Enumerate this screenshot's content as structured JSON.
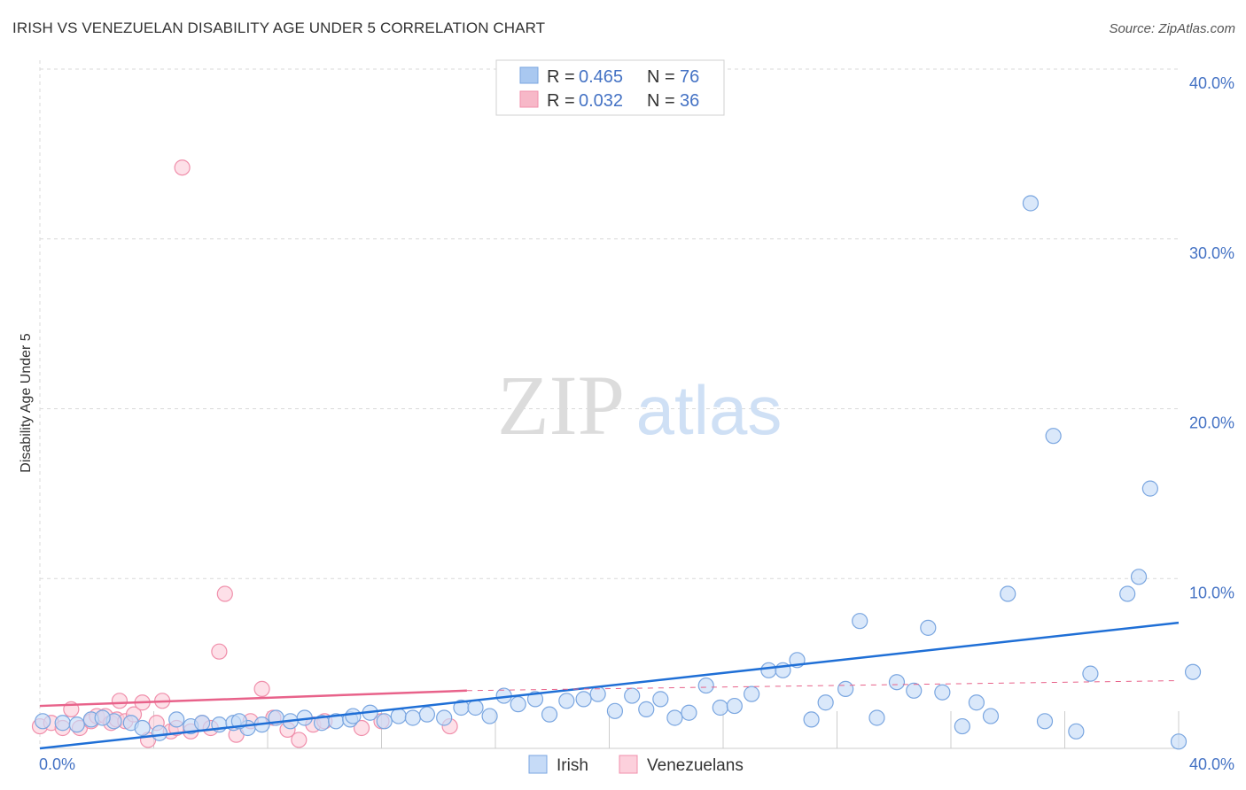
{
  "title": "IRISH VS VENEZUELAN DISABILITY AGE UNDER 5 CORRELATION CHART",
  "source": "Source: ZipAtlas.com",
  "watermark": {
    "zip": "ZIP",
    "atlas": "atlas"
  },
  "legend": {
    "r_label": "R =",
    "n_label": "N =",
    "rows": [
      {
        "name": "Irish",
        "r": "0.465",
        "n": "76",
        "color": "#a9c8f0"
      },
      {
        "name": "Venezuelans",
        "r": "0.032",
        "n": "36",
        "color": "#f7b8c8"
      }
    ]
  },
  "colors": {
    "irish_fill": "#c6dbf7",
    "irish_stroke": "#7aa6e0",
    "irish_line": "#1f6fd6",
    "venezuelan_fill": "#fcd0dc",
    "venezuelan_stroke": "#f08fab",
    "venezuelan_line": "#e8628a",
    "grid": "#d9d9d9",
    "axis_text": "#4472c4"
  },
  "chart_data": {
    "type": "scatter",
    "title": "IRISH VS VENEZUELAN DISABILITY AGE UNDER 5 CORRELATION CHART",
    "xlabel": "",
    "ylabel": "Disability Age Under 5",
    "xlim": [
      0,
      40
    ],
    "ylim": [
      0,
      40
    ],
    "x_tick_labels": [
      "0.0%",
      "40.0%"
    ],
    "y_ticks": [
      10,
      20,
      30,
      40
    ],
    "y_tick_labels": [
      "10.0%",
      "20.0%",
      "30.0%",
      "40.0%"
    ],
    "grid": true,
    "legend_position": "top-center",
    "series": [
      {
        "name": "Irish",
        "r": 0.465,
        "n": 76,
        "trend": {
          "x": [
            0.0,
            40.0
          ],
          "y": [
            0.0,
            7.4
          ]
        },
        "points": [
          [
            0.1,
            1.6
          ],
          [
            0.8,
            1.5
          ],
          [
            1.3,
            1.4
          ],
          [
            1.8,
            1.7
          ],
          [
            2.6,
            1.6
          ],
          [
            3.2,
            1.5
          ],
          [
            3.6,
            1.2
          ],
          [
            4.2,
            0.9
          ],
          [
            4.8,
            1.7
          ],
          [
            5.3,
            1.3
          ],
          [
            5.7,
            1.5
          ],
          [
            6.3,
            1.4
          ],
          [
            6.8,
            1.5
          ],
          [
            7.3,
            1.2
          ],
          [
            7.8,
            1.4
          ],
          [
            8.3,
            1.8
          ],
          [
            8.8,
            1.6
          ],
          [
            9.3,
            1.8
          ],
          [
            9.9,
            1.5
          ],
          [
            10.4,
            1.6
          ],
          [
            10.9,
            1.7
          ],
          [
            11.6,
            2.1
          ],
          [
            12.1,
            1.6
          ],
          [
            12.6,
            1.9
          ],
          [
            13.1,
            1.8
          ],
          [
            13.6,
            2.0
          ],
          [
            14.2,
            1.8
          ],
          [
            14.8,
            2.4
          ],
          [
            15.3,
            2.4
          ],
          [
            15.8,
            1.9
          ],
          [
            16.3,
            3.1
          ],
          [
            16.8,
            2.6
          ],
          [
            17.4,
            2.9
          ],
          [
            17.9,
            2.0
          ],
          [
            18.5,
            2.8
          ],
          [
            19.1,
            2.9
          ],
          [
            19.6,
            3.2
          ],
          [
            20.2,
            2.2
          ],
          [
            20.8,
            3.1
          ],
          [
            21.3,
            2.3
          ],
          [
            21.8,
            2.9
          ],
          [
            22.3,
            1.8
          ],
          [
            22.8,
            2.1
          ],
          [
            23.4,
            3.7
          ],
          [
            23.9,
            2.4
          ],
          [
            24.4,
            2.5
          ],
          [
            25.0,
            3.2
          ],
          [
            25.6,
            4.6
          ],
          [
            26.1,
            4.6
          ],
          [
            26.6,
            5.2
          ],
          [
            27.1,
            1.7
          ],
          [
            27.6,
            2.7
          ],
          [
            28.3,
            3.5
          ],
          [
            28.8,
            7.5
          ],
          [
            29.4,
            1.8
          ],
          [
            30.1,
            3.9
          ],
          [
            30.7,
            3.4
          ],
          [
            31.2,
            7.1
          ],
          [
            31.7,
            3.3
          ],
          [
            32.4,
            1.3
          ],
          [
            32.9,
            2.7
          ],
          [
            33.4,
            1.9
          ],
          [
            34.0,
            9.1
          ],
          [
            34.8,
            32.1
          ],
          [
            35.3,
            1.6
          ],
          [
            35.6,
            18.4
          ],
          [
            36.4,
            1.0
          ],
          [
            36.9,
            4.4
          ],
          [
            38.2,
            9.1
          ],
          [
            38.6,
            10.1
          ],
          [
            39.0,
            15.3
          ],
          [
            40.0,
            0.4
          ],
          [
            40.5,
            4.5
          ],
          [
            7.0,
            1.6
          ],
          [
            11.0,
            1.9
          ],
          [
            2.2,
            1.8
          ]
        ]
      },
      {
        "name": "Venezuelans",
        "r": 0.032,
        "n": 36,
        "trend": {
          "x": [
            0.0,
            15.0
          ],
          "y": [
            2.5,
            3.4
          ]
        },
        "points": [
          [
            0.0,
            1.3
          ],
          [
            0.4,
            1.5
          ],
          [
            0.8,
            1.2
          ],
          [
            1.1,
            2.3
          ],
          [
            1.4,
            1.2
          ],
          [
            1.8,
            1.6
          ],
          [
            2.0,
            1.9
          ],
          [
            2.3,
            1.9
          ],
          [
            2.5,
            1.5
          ],
          [
            2.7,
            1.7
          ],
          [
            2.8,
            2.8
          ],
          [
            3.0,
            1.6
          ],
          [
            3.3,
            2.0
          ],
          [
            3.6,
            2.7
          ],
          [
            3.8,
            0.5
          ],
          [
            4.1,
            1.5
          ],
          [
            4.3,
            2.8
          ],
          [
            4.6,
            1.0
          ],
          [
            4.8,
            1.2
          ],
          [
            5.0,
            34.2
          ],
          [
            5.3,
            1.0
          ],
          [
            5.7,
            1.5
          ],
          [
            6.0,
            1.2
          ],
          [
            6.3,
            5.7
          ],
          [
            6.5,
            9.1
          ],
          [
            6.9,
            0.8
          ],
          [
            7.4,
            1.6
          ],
          [
            7.8,
            3.5
          ],
          [
            8.2,
            1.8
          ],
          [
            8.7,
            1.1
          ],
          [
            9.1,
            0.5
          ],
          [
            9.6,
            1.4
          ],
          [
            10.0,
            1.6
          ],
          [
            11.3,
            1.2
          ],
          [
            12.0,
            1.6
          ],
          [
            14.4,
            1.3
          ]
        ]
      }
    ]
  }
}
